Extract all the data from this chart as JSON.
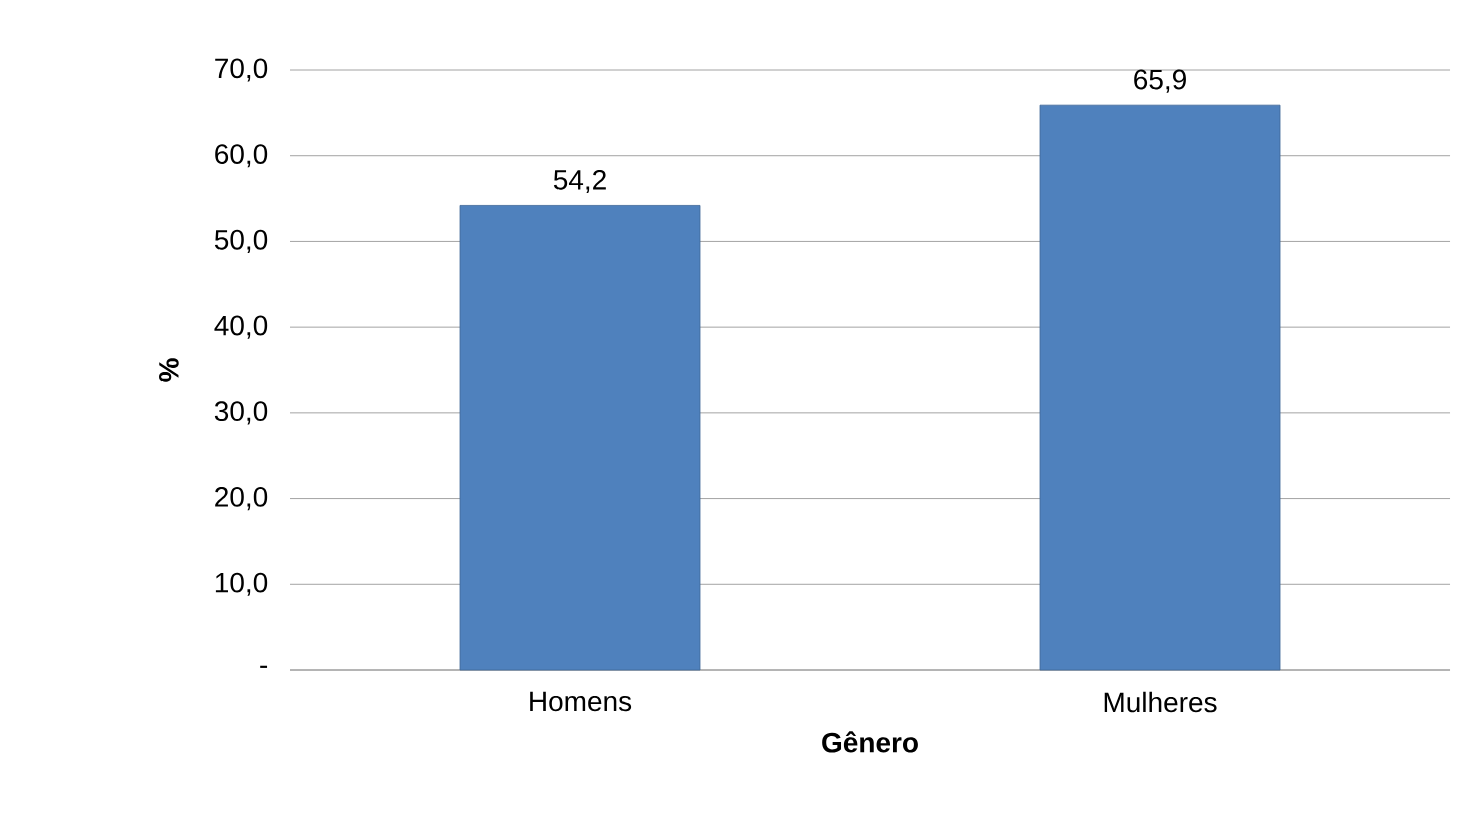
{
  "chart_data": {
    "type": "bar",
    "xlabel": "Gênero",
    "ylabel": "%",
    "categories": [
      "Homens",
      "Mulheres"
    ],
    "values": [
      54.2,
      65.9
    ],
    "value_labels": [
      "54,2",
      "65,9"
    ],
    "color": "#4f81bd",
    "ylim": [
      0,
      70
    ],
    "yticks": [
      {
        "value": 0,
        "label": "-"
      },
      {
        "value": 10,
        "label": "10,0"
      },
      {
        "value": 20,
        "label": "20,0"
      },
      {
        "value": 30,
        "label": "30,0"
      },
      {
        "value": 40,
        "label": "40,0"
      },
      {
        "value": 50,
        "label": "50,0"
      },
      {
        "value": 60,
        "label": "60,0"
      },
      {
        "value": 70,
        "label": "70,0"
      }
    ],
    "grid": "y"
  }
}
